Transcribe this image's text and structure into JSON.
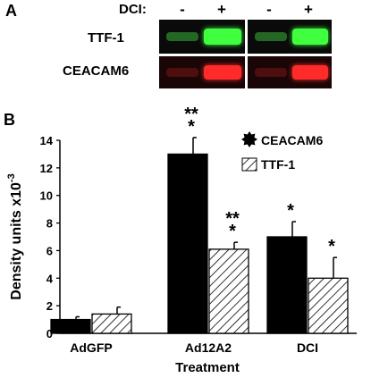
{
  "panel_a": {
    "letter": "A",
    "treatment_label": "DCI:",
    "lane_signs": [
      "-",
      "+",
      "-",
      "+"
    ],
    "rows": [
      {
        "label": "TTF-1",
        "color": "#3fff3f"
      },
      {
        "label": "CEACAM6",
        "color": "#ff2a2a"
      }
    ]
  },
  "panel_b": {
    "letter": "B"
  },
  "chart_data": {
    "type": "bar",
    "categories": [
      "AdGFP",
      "Ad12A2",
      "DCI"
    ],
    "series": [
      {
        "name": "CEACAM6",
        "values": [
          1.0,
          13.0,
          7.0
        ],
        "errors": [
          0.2,
          1.2,
          1.1
        ],
        "annotations": [
          "",
          "**\n*",
          "*"
        ],
        "fill": "#000000"
      },
      {
        "name": "TTF-1",
        "values": [
          1.4,
          6.1,
          4.0
        ],
        "errors": [
          0.5,
          0.5,
          1.5
        ],
        "annotations": [
          "",
          "**\n*",
          "*"
        ],
        "fill": "hatched"
      }
    ],
    "ylabel": "Density units  x10",
    "ylabel_exponent": "-3",
    "xlabel": "Treatment",
    "ylim": [
      0,
      14
    ],
    "yticks": [
      "0",
      "2",
      "4",
      "6",
      "8",
      "10",
      "12",
      "14"
    ],
    "legend_position": "top-right"
  }
}
